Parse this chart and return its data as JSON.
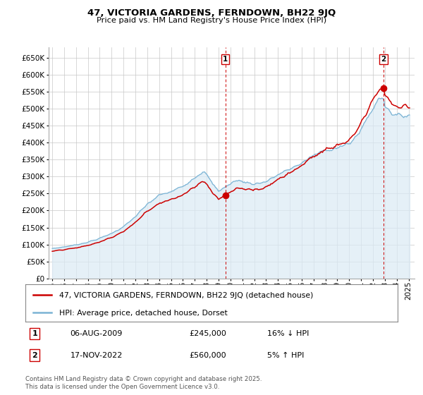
{
  "title": "47, VICTORIA GARDENS, FERNDOWN, BH22 9JQ",
  "subtitle": "Price paid vs. HM Land Registry's House Price Index (HPI)",
  "legend_line1": "47, VICTORIA GARDENS, FERNDOWN, BH22 9JQ (detached house)",
  "legend_line2": "HPI: Average price, detached house, Dorset",
  "sale1_date": "06-AUG-2009",
  "sale1_price": 245000,
  "sale1_label": "16% ↓ HPI",
  "sale1_num": "1",
  "sale2_date": "17-NOV-2022",
  "sale2_price": 560000,
  "sale2_label": "5% ↑ HPI",
  "sale2_num": "2",
  "footnote": "Contains HM Land Registry data © Crown copyright and database right 2025.\nThis data is licensed under the Open Government Licence v3.0.",
  "hpi_color": "#7ab3d4",
  "hpi_fill": "#daeaf5",
  "sale_color": "#cc0000",
  "vline_color": "#cc0000",
  "grid_color": "#c8c8c8",
  "bg_color": "#ffffff",
  "ylim": [
    0,
    680000
  ],
  "yticks": [
    0,
    50000,
    100000,
    150000,
    200000,
    250000,
    300000,
    350000,
    400000,
    450000,
    500000,
    550000,
    600000,
    650000
  ],
  "sale1_x": 2009.58,
  "sale2_x": 2022.88
}
